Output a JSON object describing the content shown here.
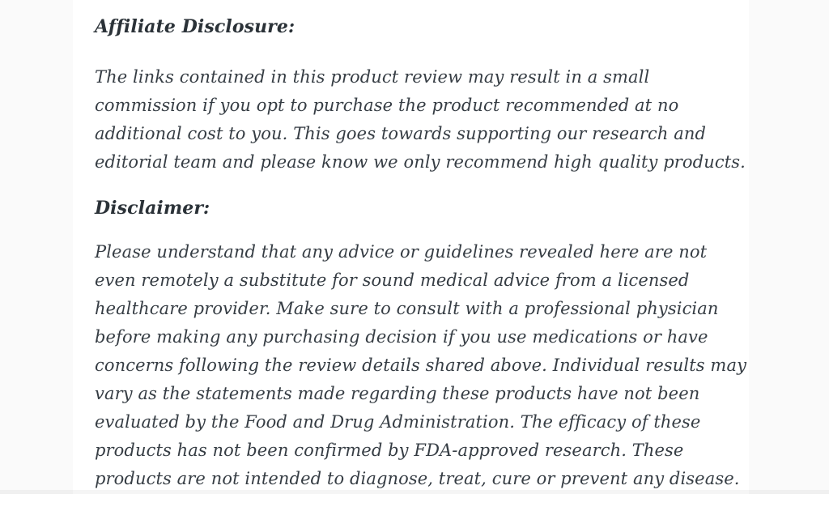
{
  "page": {
    "background_color": "#ffffff",
    "text_color": "#363d44",
    "heading_color": "#2b3238"
  },
  "content": {
    "sections": [
      {
        "heading": "Affiliate Disclosure:",
        "paragraph": "The links contained in this product review may result in a small commission if you opt to purchase the product recommended at no additional cost to you. This goes towards supporting our research and editorial team and please know we only recommend high quality products."
      },
      {
        "heading": "Disclaimer:",
        "paragraph": "Please understand that any advice or guidelines revealed here are not even remotely a substitute for sound medical advice from a licensed healthcare provider. Make sure to consult with a professional physician before making any purchasing decision if you use medications or have concerns following the review details shared above. Individual results may vary as the statements made regarding these products have not been evaluated by the Food and Drug Administration. The efficacy of these products has not been confirmed by FDA-approved research. These products are not intended to diagnose, treat, cure or prevent any disease."
      }
    ]
  }
}
